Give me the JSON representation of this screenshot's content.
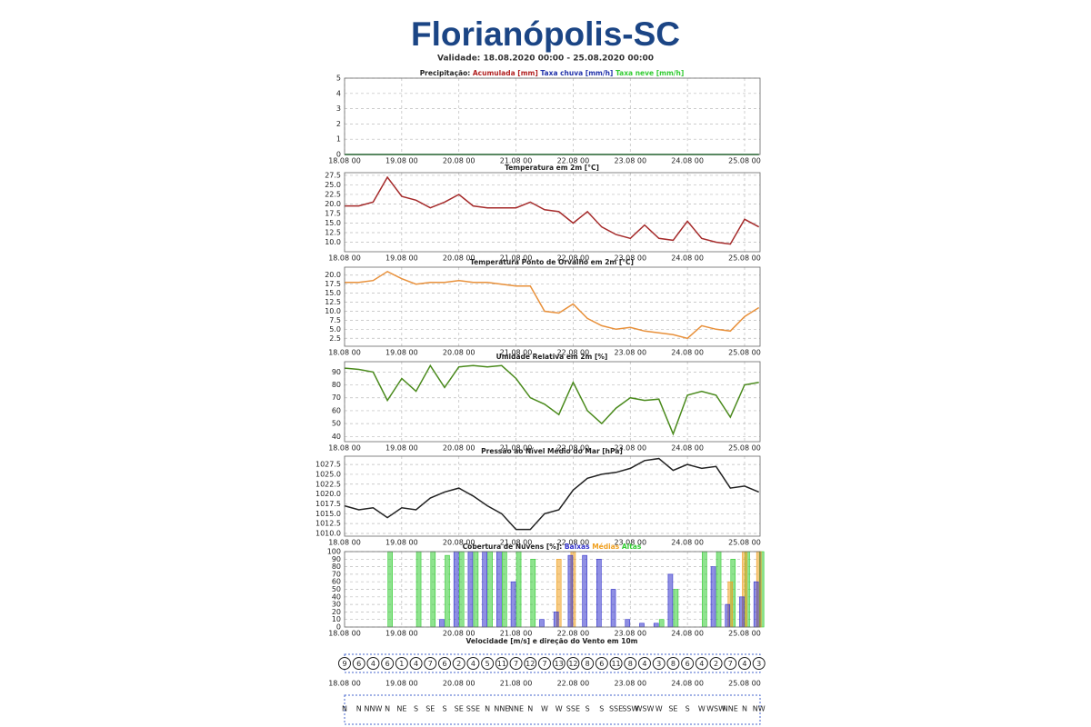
{
  "header": {
    "title": "Florianópolis-SC",
    "subtitle": "Validade: 18.08.2020 00:00 - 25.08.2020 00:00"
  },
  "chart_data": [
    {
      "type": "line",
      "title": "Precipitação:",
      "x": [
        0,
        6,
        12,
        18,
        24,
        30,
        36,
        42,
        48,
        54,
        60,
        66,
        72,
        78,
        84,
        90,
        96,
        102,
        108,
        114,
        120,
        126,
        132,
        138,
        144,
        150,
        156,
        162,
        168,
        174
      ],
      "xlim": [
        0,
        174.5
      ],
      "xticks": [
        {
          "value": 0,
          "label": "18.08 00"
        },
        {
          "value": 24,
          "label": "19.08 00"
        },
        {
          "value": 48,
          "label": "20.08 00"
        },
        {
          "value": 72,
          "label": "21.08 00"
        },
        {
          "value": 96,
          "label": "22.08 00"
        },
        {
          "value": 120,
          "label": "23.08 00"
        },
        {
          "value": 144,
          "label": "24.08 00"
        },
        {
          "value": 168,
          "label": "25.08 00"
        }
      ],
      "ylim": [
        0,
        5
      ],
      "yticks": [
        0,
        1,
        2,
        3,
        4,
        5
      ],
      "grid": true,
      "series": [
        {
          "name": "Acumulada [mm]",
          "color": "#b22222",
          "values": [
            0,
            0,
            0,
            0,
            0,
            0,
            0,
            0,
            0,
            0,
            0,
            0,
            0,
            0,
            0,
            0,
            0,
            0,
            0,
            0,
            0,
            0,
            0,
            0,
            0,
            0,
            0,
            0,
            0,
            0
          ]
        },
        {
          "name": "Taxa chuva [mm/h]",
          "color": "#2233aa",
          "values": [
            0,
            0,
            0,
            0,
            0,
            0,
            0,
            0,
            0,
            0,
            0,
            0,
            0,
            0,
            0,
            0,
            0,
            0,
            0,
            0,
            0,
            0,
            0,
            0,
            0,
            0,
            0,
            0,
            0,
            0
          ]
        },
        {
          "name": "Taxa neve [mm/h]",
          "color": "#33cc33",
          "values": [
            0,
            0,
            0,
            0,
            0,
            0,
            0,
            0,
            0,
            0,
            0,
            0,
            0,
            0,
            0,
            0,
            0,
            0,
            0,
            0,
            0,
            0,
            0,
            0,
            0,
            0,
            0,
            0,
            0,
            0
          ]
        }
      ]
    },
    {
      "type": "line",
      "title": "Temperatura em 2m [°C]",
      "x": [
        0,
        6,
        12,
        18,
        24,
        30,
        36,
        42,
        48,
        54,
        60,
        66,
        72,
        78,
        84,
        90,
        96,
        102,
        108,
        114,
        120,
        126,
        132,
        138,
        144,
        150,
        156,
        162,
        168,
        174
      ],
      "xlim": [
        0,
        174.5
      ],
      "xticks": [
        {
          "value": 0,
          "label": "18.08 00"
        },
        {
          "value": 24,
          "label": "19.08 00"
        },
        {
          "value": 48,
          "label": "20.08 00"
        },
        {
          "value": 72,
          "label": "21.08 00"
        },
        {
          "value": 96,
          "label": "22.08 00"
        },
        {
          "value": 120,
          "label": "23.08 00"
        },
        {
          "value": 144,
          "label": "24.08 00"
        },
        {
          "value": 168,
          "label": "25.08 00"
        }
      ],
      "ylim": [
        7.5,
        28.2
      ],
      "yticks": [
        {
          "value": 10,
          "label": "10.0"
        },
        12.5,
        {
          "value": 15,
          "label": "15.0"
        },
        17.5,
        {
          "value": 20,
          "label": "20.0"
        },
        22.5,
        {
          "value": 25,
          "label": "25.0"
        },
        27.5
      ],
      "grid": true,
      "series": [
        {
          "name": "Temperatura em 2m",
          "color": "#a52a2a",
          "values": [
            19.5,
            19.5,
            20.5,
            27,
            22,
            21,
            19,
            20.5,
            22.5,
            19.5,
            19,
            19,
            19,
            20.5,
            18.5,
            18,
            15,
            18,
            14,
            12,
            11,
            14.5,
            11,
            10.5,
            15.5,
            11,
            10,
            9.5,
            16,
            14
          ]
        }
      ]
    },
    {
      "type": "line",
      "title": "Temperatura Ponto de Orvalho em 2m [°C]",
      "x": [
        0,
        6,
        12,
        18,
        24,
        30,
        36,
        42,
        48,
        54,
        60,
        66,
        72,
        78,
        84,
        90,
        96,
        102,
        108,
        114,
        120,
        126,
        132,
        138,
        144,
        150,
        156,
        162,
        168,
        174
      ],
      "xlim": [
        0,
        174.5
      ],
      "xticks": [
        {
          "value": 0,
          "label": "18.08 00"
        },
        {
          "value": 24,
          "label": "19.08 00"
        },
        {
          "value": 48,
          "label": "20.08 00"
        },
        {
          "value": 72,
          "label": "21.08 00"
        },
        {
          "value": 96,
          "label": "22.08 00"
        },
        {
          "value": 120,
          "label": "23.08 00"
        },
        {
          "value": 144,
          "label": "24.08 00"
        },
        {
          "value": 168,
          "label": "25.08 00"
        }
      ],
      "ylim": [
        0.3,
        22.2
      ],
      "yticks": [
        2.5,
        {
          "value": 5,
          "label": "5.0"
        },
        7.5,
        {
          "value": 10,
          "label": "10.0"
        },
        12.5,
        {
          "value": 15,
          "label": "15.0"
        },
        17.5,
        {
          "value": 20,
          "label": "20.0"
        }
      ],
      "grid": true,
      "series": [
        {
          "name": "Ponto de Orvalho",
          "color": "#e8903a",
          "values": [
            18,
            18,
            18.5,
            21,
            19,
            17.5,
            18,
            18,
            18.5,
            18,
            18,
            17.5,
            17,
            17,
            10,
            9.5,
            12,
            8,
            6,
            5,
            5.5,
            4.5,
            4,
            3.5,
            2.5,
            6,
            5,
            4.5,
            8.5,
            11
          ]
        }
      ]
    },
    {
      "type": "line",
      "title": "Umidade Relativa em 2m [%]",
      "x": [
        0,
        6,
        12,
        18,
        24,
        30,
        36,
        42,
        48,
        54,
        60,
        66,
        72,
        78,
        84,
        90,
        96,
        102,
        108,
        114,
        120,
        126,
        132,
        138,
        144,
        150,
        156,
        162,
        168,
        174
      ],
      "xlim": [
        0,
        174.5
      ],
      "xticks": [
        {
          "value": 0,
          "label": "18.08 00"
        },
        {
          "value": 24,
          "label": "19.08 00"
        },
        {
          "value": 48,
          "label": "20.08 00"
        },
        {
          "value": 72,
          "label": "21.08 00"
        },
        {
          "value": 96,
          "label": "22.08 00"
        },
        {
          "value": 120,
          "label": "23.08 00"
        },
        {
          "value": 144,
          "label": "24.08 00"
        },
        {
          "value": 168,
          "label": "25.08 00"
        }
      ],
      "ylim": [
        36,
        98
      ],
      "yticks": [
        40,
        50,
        60,
        70,
        80,
        90
      ],
      "grid": true,
      "series": [
        {
          "name": "Umidade Relativa",
          "color": "#4a8a1c",
          "values": [
            93,
            92,
            90,
            68,
            85,
            75,
            95,
            78,
            94,
            95,
            94,
            95,
            85,
            70,
            65,
            57,
            82,
            60,
            50,
            62,
            70,
            68,
            69,
            42,
            72,
            75,
            72,
            55,
            80,
            82
          ]
        }
      ]
    },
    {
      "type": "line",
      "title": "Pressão ao Nível Médio do Mar [hPa]",
      "x": [
        0,
        6,
        12,
        18,
        24,
        30,
        36,
        42,
        48,
        54,
        60,
        66,
        72,
        78,
        84,
        90,
        96,
        102,
        108,
        114,
        120,
        126,
        132,
        138,
        144,
        150,
        156,
        162,
        168,
        174
      ],
      "xlim": [
        0,
        174.5
      ],
      "xticks": [
        {
          "value": 0,
          "label": "18.08 00"
        },
        {
          "value": 24,
          "label": "19.08 00"
        },
        {
          "value": 48,
          "label": "20.08 00"
        },
        {
          "value": 72,
          "label": "21.08 00"
        },
        {
          "value": 96,
          "label": "22.08 00"
        },
        {
          "value": 120,
          "label": "23.08 00"
        },
        {
          "value": 144,
          "label": "24.08 00"
        },
        {
          "value": 168,
          "label": "25.08 00"
        }
      ],
      "ylim": [
        1009.3,
        1029.6
      ],
      "yticks": [
        {
          "value": 1010,
          "label": "1010.0"
        },
        1012.5,
        {
          "value": 1015,
          "label": "1015.0"
        },
        1017.5,
        {
          "value": 1020,
          "label": "1020.0"
        },
        1022.5,
        {
          "value": 1025,
          "label": "1025.0"
        },
        1027.5
      ],
      "grid": true,
      "series": [
        {
          "name": "Pressão",
          "color": "#222222",
          "values": [
            1017,
            1016,
            1016.5,
            1014,
            1016.5,
            1016,
            1019,
            1020.5,
            1021.5,
            1019.5,
            1017,
            1015,
            1011,
            1011,
            1015,
            1016,
            1021,
            1024,
            1025,
            1025.5,
            1026.5,
            1028.5,
            1029,
            1026,
            1027.5,
            1026.5,
            1027,
            1021.5,
            1022,
            1020.5
          ]
        }
      ]
    },
    {
      "type": "bar",
      "title": "Cobertura de Nuvens [%]:",
      "x": [
        0,
        6,
        12,
        18,
        24,
        30,
        36,
        42,
        48,
        54,
        60,
        66,
        72,
        78,
        84,
        90,
        96,
        102,
        108,
        114,
        120,
        126,
        132,
        138,
        144,
        150,
        156,
        162,
        168,
        174
      ],
      "xlim": [
        0,
        174.5
      ],
      "xticks": [
        {
          "value": 0,
          "label": "18.08 00"
        },
        {
          "value": 24,
          "label": "19.08 00"
        },
        {
          "value": 48,
          "label": "20.08 00"
        },
        {
          "value": 72,
          "label": "21.08 00"
        },
        {
          "value": 96,
          "label": "22.08 00"
        },
        {
          "value": 120,
          "label": "23.08 00"
        },
        {
          "value": 144,
          "label": "24.08 00"
        },
        {
          "value": 168,
          "label": "25.08 00"
        }
      ],
      "ylim": [
        0,
        100
      ],
      "yticks": [
        0,
        10,
        20,
        30,
        40,
        50,
        60,
        70,
        80,
        90,
        100
      ],
      "grid": true,
      "series": [
        {
          "name": "Baixas",
          "color": "#3333cc",
          "values": [
            0,
            0,
            0,
            0,
            0,
            0,
            0,
            10,
            100,
            100,
            100,
            100,
            60,
            0,
            10,
            20,
            95,
            95,
            90,
            50,
            10,
            5,
            5,
            70,
            0,
            0,
            80,
            30,
            40,
            60
          ]
        },
        {
          "name": "Médias",
          "color": "#f0a020",
          "values": [
            0,
            0,
            0,
            0,
            0,
            0,
            0,
            0,
            0,
            0,
            0,
            0,
            0,
            0,
            0,
            90,
            100,
            0,
            0,
            0,
            0,
            0,
            0,
            0,
            0,
            0,
            0,
            60,
            100,
            100
          ]
        },
        {
          "name": "Altas",
          "color": "#33cc33",
          "values": [
            0,
            0,
            0,
            100,
            0,
            100,
            100,
            95,
            100,
            100,
            100,
            100,
            100,
            90,
            0,
            0,
            0,
            0,
            0,
            0,
            0,
            0,
            10,
            50,
            0,
            100,
            100,
            90,
            100,
            100
          ]
        }
      ]
    },
    {
      "type": "wind",
      "title": "Velocidade [m/s] e direção do Vento em 10m",
      "x": [
        0,
        6,
        12,
        18,
        24,
        30,
        36,
        42,
        48,
        54,
        60,
        66,
        72,
        78,
        84,
        90,
        96,
        102,
        108,
        114,
        120,
        126,
        132,
        138,
        144,
        150,
        156,
        162,
        168,
        174
      ],
      "xlim": [
        0,
        174.5
      ],
      "xticks": [
        {
          "value": 0,
          "label": "18.08 00"
        },
        {
          "value": 24,
          "label": "19.08 00"
        },
        {
          "value": 48,
          "label": "20.08 00"
        },
        {
          "value": 72,
          "label": "21.08 00"
        },
        {
          "value": 96,
          "label": "22.08 00"
        },
        {
          "value": 120,
          "label": "23.08 00"
        },
        {
          "value": 144,
          "label": "24.08 00"
        },
        {
          "value": 168,
          "label": "25.08 00"
        }
      ],
      "values": [
        9,
        6,
        4,
        6,
        1,
        4,
        7,
        6,
        2,
        4,
        5,
        11,
        7,
        12,
        7,
        13,
        12,
        8,
        6,
        11,
        8,
        4,
        3,
        8,
        6,
        4,
        2,
        7,
        4,
        3
      ],
      "directions": [
        "N",
        "N",
        "NNW",
        "N",
        "NE",
        "S",
        "SE",
        "S",
        "SE",
        "SSE",
        "N",
        "NNE",
        "NNE",
        "N",
        "W",
        "W",
        "SSE",
        "S",
        "S",
        "SSE",
        "SSW",
        "WSW",
        "W",
        "SE",
        "S",
        "W",
        "WSW",
        "NNE",
        "N",
        "NW"
      ]
    }
  ]
}
